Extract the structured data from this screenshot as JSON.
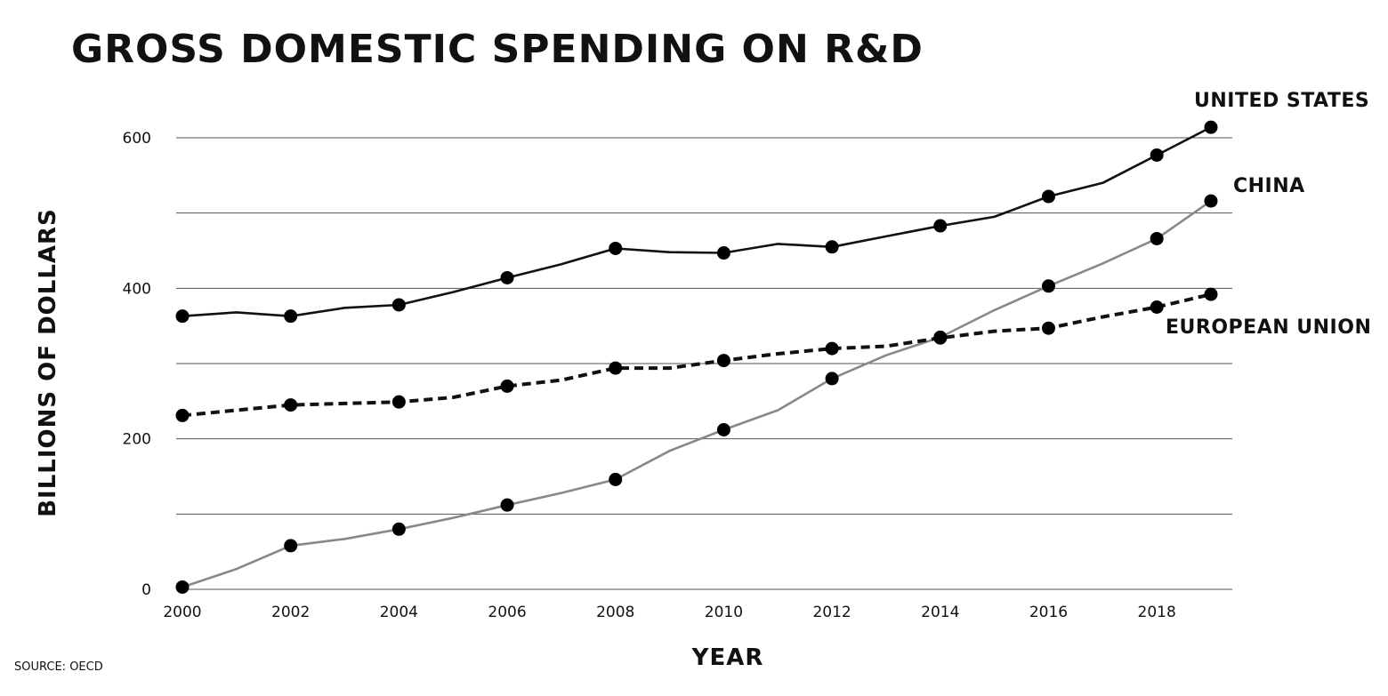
{
  "chart_data": {
    "type": "line",
    "title": "GROSS DOMESTIC SPENDING ON R&D",
    "xlabel": "YEAR",
    "ylabel": "BILLIONS OF DOLLARS",
    "source": "SOURCE: OECD",
    "ylim": [
      0,
      600
    ],
    "xlim": [
      2000,
      2019
    ],
    "yticks": [
      0,
      200,
      400,
      600
    ],
    "xticks": [
      2000,
      2002,
      2004,
      2006,
      2008,
      2010,
      2012,
      2014,
      2016,
      2018
    ],
    "ytick_labels": [
      "0",
      "200",
      "400",
      "600"
    ],
    "xtick_labels": [
      "2000",
      "2002",
      "2004",
      "2006",
      "2008",
      "2010",
      "2012",
      "2014",
      "2016",
      "2018"
    ],
    "gridlines": [
      0,
      100,
      200,
      300,
      400,
      500,
      600
    ],
    "x": [
      2000,
      2001,
      2002,
      2003,
      2004,
      2005,
      2006,
      2007,
      2008,
      2009,
      2010,
      2011,
      2012,
      2013,
      2014,
      2015,
      2016,
      2017,
      2018,
      2019
    ],
    "series": [
      {
        "name": "UNITED STATES",
        "style": "solid",
        "color": "#111111",
        "values": [
          363,
          368,
          363,
          374,
          378,
          395,
          414,
          432,
          453,
          448,
          447,
          459,
          455,
          469,
          483,
          495,
          522,
          540,
          577,
          614
        ],
        "markers": [
          2000,
          2002,
          2004,
          2006,
          2008,
          2010,
          2012,
          2014,
          2016,
          2018,
          2019
        ]
      },
      {
        "name": "CHINA",
        "style": "solid",
        "color": "#888888",
        "values": [
          3,
          27,
          58,
          67,
          80,
          95,
          112,
          128,
          146,
          184,
          212,
          238,
          280,
          311,
          335,
          371,
          403,
          433,
          466,
          516
        ],
        "markers": [
          2000,
          2002,
          2004,
          2006,
          2008,
          2010,
          2012,
          2014,
          2016,
          2018,
          2019
        ]
      },
      {
        "name": "EUROPEAN UNION",
        "style": "dashed",
        "color": "#111111",
        "values": [
          231,
          238,
          245,
          247,
          249,
          255,
          270,
          278,
          294,
          294,
          304,
          313,
          320,
          323,
          334,
          343,
          347,
          362,
          375,
          392
        ],
        "markers": [
          2000,
          2002,
          2004,
          2006,
          2008,
          2010,
          2012,
          2014,
          2016,
          2018,
          2019
        ]
      }
    ]
  }
}
